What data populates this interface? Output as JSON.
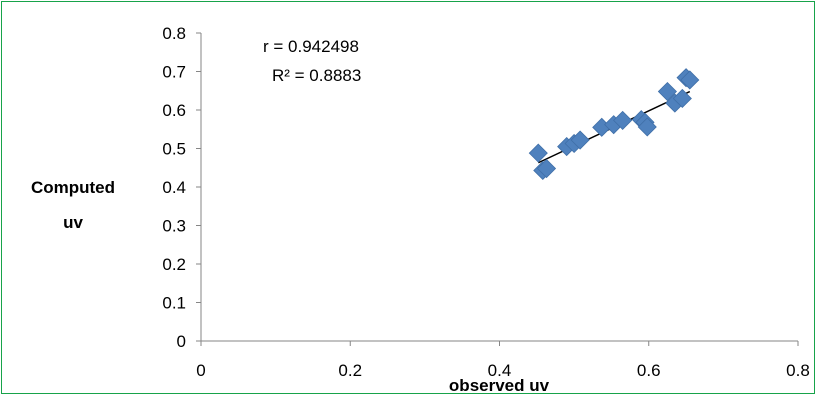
{
  "chart_data": {
    "type": "scatter",
    "title": "",
    "xlabel": "observed uv",
    "ylabel_lines": [
      "Computed",
      "uv"
    ],
    "xlim": [
      0,
      0.8
    ],
    "ylim": [
      0,
      0.8
    ],
    "x_ticks": [
      "0",
      "0.2",
      "0.4",
      "0.6",
      "0.8"
    ],
    "y_ticks": [
      "0",
      "0.1",
      "0.2",
      "0.3",
      "0.4",
      "0.5",
      "0.6",
      "0.7",
      "0.8"
    ],
    "grid": false,
    "legend": "none",
    "annotations": [
      "r = 0.942498",
      "R² = 0.8883"
    ],
    "marker": "diamond",
    "marker_color": "#4f81bd",
    "trendline_color": "#000000",
    "series": [
      {
        "points": [
          [
            0.452,
            0.488
          ],
          [
            0.458,
            0.443
          ],
          [
            0.463,
            0.448
          ],
          [
            0.49,
            0.505
          ],
          [
            0.5,
            0.513
          ],
          [
            0.508,
            0.522
          ],
          [
            0.537,
            0.555
          ],
          [
            0.553,
            0.562
          ],
          [
            0.565,
            0.573
          ],
          [
            0.59,
            0.575
          ],
          [
            0.595,
            0.568
          ],
          [
            0.598,
            0.556
          ],
          [
            0.625,
            0.648
          ],
          [
            0.635,
            0.618
          ],
          [
            0.645,
            0.63
          ],
          [
            0.65,
            0.684
          ],
          [
            0.655,
            0.678
          ]
        ]
      }
    ],
    "trendline": [
      [
        0.452,
        0.463
      ],
      [
        0.655,
        0.648
      ]
    ]
  }
}
